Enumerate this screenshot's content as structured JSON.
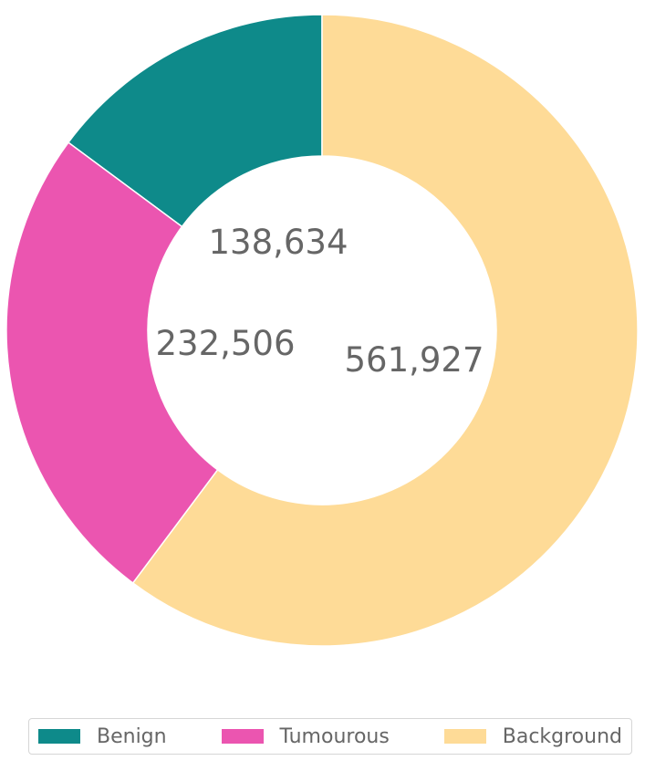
{
  "chart_data": {
    "type": "pie",
    "donut": true,
    "categories": [
      "Benign",
      "Tumourous",
      "Background"
    ],
    "values": [
      138634,
      232506,
      561927
    ],
    "value_labels": [
      "138,634",
      "232,506",
      "561,927"
    ],
    "colors": [
      "#0e8a8a",
      "#eb55b0",
      "#fedb97"
    ],
    "legend_position": "bottom"
  }
}
